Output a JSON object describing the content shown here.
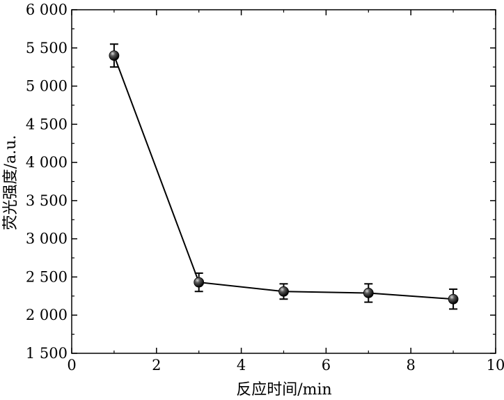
{
  "chart_data": {
    "type": "scatter",
    "xlabel": "反应时间/min",
    "ylabel": "荧光强度/a.u.",
    "xlim": [
      0,
      10
    ],
    "ylim": [
      1500,
      6000
    ],
    "x_ticks": [
      0,
      2,
      4,
      6,
      8,
      10
    ],
    "x_tick_labels": [
      "0",
      "2",
      "4",
      "6",
      "8",
      "10"
    ],
    "y_ticks": [
      1500,
      2000,
      2500,
      3000,
      3500,
      4000,
      4500,
      5000,
      5500,
      6000
    ],
    "y_tick_labels": [
      "1 500",
      "2 000",
      "2 500",
      "3 000",
      "3 500",
      "4 000",
      "4 500",
      "5 000",
      "5 500",
      "6 000"
    ],
    "grid": false,
    "legend": "none",
    "connected_line": true,
    "series": [
      {
        "x": [
          1,
          3,
          5,
          7,
          9
        ],
        "y": [
          5400,
          2430,
          2310,
          2290,
          2210
        ],
        "error": [
          150,
          120,
          100,
          120,
          130
        ],
        "color": "#000000"
      }
    ]
  }
}
